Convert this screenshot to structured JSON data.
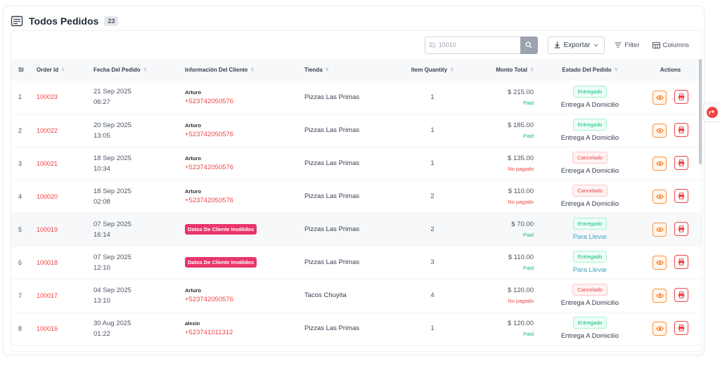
{
  "header": {
    "title": "Todos Pedidos",
    "count": "23"
  },
  "toolbar": {
    "search_placeholder": "Ej: 10010",
    "search_value": "",
    "export_label": "Exportar",
    "filter_label": "Filter",
    "columns_label": "Columns"
  },
  "columns": [
    "Sl",
    "Order Id",
    "Fecha Del Pedido",
    "Información Del Cliente",
    "Tienda",
    "Item Quantity",
    "Monto Total",
    "Estado Del Pedido",
    "Actions"
  ],
  "rows": [
    {
      "sl": "1",
      "order_id": "100023",
      "date": "21 Sep 2025",
      "time": "06:27",
      "customer": "Arturo",
      "phone": "+523742050576",
      "invalid": "",
      "store": "Pizzas Las Primas",
      "qty": "1",
      "amount": "$ 215.00",
      "payment": "Paid",
      "status": "Entregado",
      "delivery": "Entrega A Domicilio"
    },
    {
      "sl": "2",
      "order_id": "100022",
      "date": "20 Sep 2025",
      "time": "13:05",
      "customer": "Arturo",
      "phone": "+523742050576",
      "invalid": "",
      "store": "Pizzas Las Primas",
      "qty": "1",
      "amount": "$ 185.00",
      "payment": "Paid",
      "status": "Entregado",
      "delivery": "Entrega A Domicilio"
    },
    {
      "sl": "3",
      "order_id": "100021",
      "date": "18 Sep 2025",
      "time": "10:34",
      "customer": "Arturo",
      "phone": "+523742050576",
      "invalid": "",
      "store": "Pizzas Las Primas",
      "qty": "1",
      "amount": "$ 135.00",
      "payment": "No pagado",
      "status": "Cancelado",
      "delivery": "Entrega A Domicilio"
    },
    {
      "sl": "4",
      "order_id": "100020",
      "date": "18 Sep 2025",
      "time": "02:08",
      "customer": "Arturo",
      "phone": "+523742050576",
      "invalid": "",
      "store": "Pizzas Las Primas",
      "qty": "2",
      "amount": "$ 110.00",
      "payment": "No pagado",
      "status": "Cancelado",
      "delivery": "Entrega A Domicilio"
    },
    {
      "sl": "5",
      "order_id": "100019",
      "date": "07 Sep 2025",
      "time": "16:14",
      "customer": "",
      "phone": "",
      "invalid": "Datos De Cliente Inválidos",
      "store": "Pizzas Las Primas",
      "qty": "2",
      "amount": "$ 70.00",
      "payment": "Paid",
      "status": "Entregado",
      "delivery": "Para Llevar"
    },
    {
      "sl": "6",
      "order_id": "100018",
      "date": "07 Sep 2025",
      "time": "12:10",
      "customer": "",
      "phone": "",
      "invalid": "Datos De Cliente Inválidos",
      "store": "Pizzas Las Primas",
      "qty": "3",
      "amount": "$ 110.00",
      "payment": "Paid",
      "status": "Entregado",
      "delivery": "Para Llevar"
    },
    {
      "sl": "7",
      "order_id": "100017",
      "date": "04 Sep 2025",
      "time": "13:10",
      "customer": "Arturo",
      "phone": "+523742050576",
      "invalid": "",
      "store": "Tacos Chuyita",
      "qty": "4",
      "amount": "$ 120.00",
      "payment": "No pagado",
      "status": "Cancelado",
      "delivery": "Entrega A Domicilio"
    },
    {
      "sl": "8",
      "order_id": "100016",
      "date": "30 Aug 2025",
      "time": "01:22",
      "customer": "alexin",
      "phone": "+523741011312",
      "invalid": "",
      "store": "Pizzas Las Primas",
      "qty": "1",
      "amount": "$ 120.00",
      "payment": "Paid",
      "status": "Entregado",
      "delivery": "Entrega A Domicilio"
    }
  ],
  "colors": {
    "accent_red": "#ef4444",
    "paid_green": "#10b981",
    "pickup_blue": "#3aa6c4",
    "view_orange": "#fb923c"
  }
}
